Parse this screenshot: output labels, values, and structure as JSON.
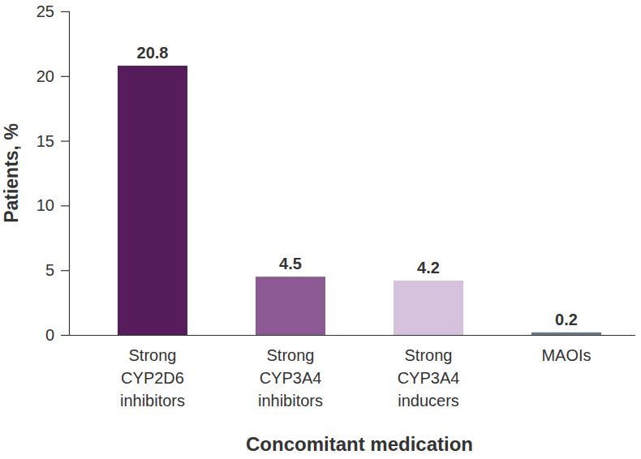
{
  "chart_data": {
    "type": "bar",
    "x_label": "Concomitant medication",
    "y_label": "Patients, %",
    "categories": [
      "Strong CYP2D6 inhibitors",
      "Strong CYP3A4 inhibitors",
      "Strong CYP3A4 inducers",
      "MAOIs"
    ],
    "values": [
      20.8,
      4.5,
      4.2,
      0.2
    ],
    "colors": [
      "#561c5b",
      "#8b5a93",
      "#d6c2dc",
      "#6b7a8a"
    ],
    "ylim": [
      0,
      25
    ],
    "yticks": [
      0,
      5,
      10,
      15,
      20,
      25
    ],
    "grid": false,
    "data_labels": true
  }
}
